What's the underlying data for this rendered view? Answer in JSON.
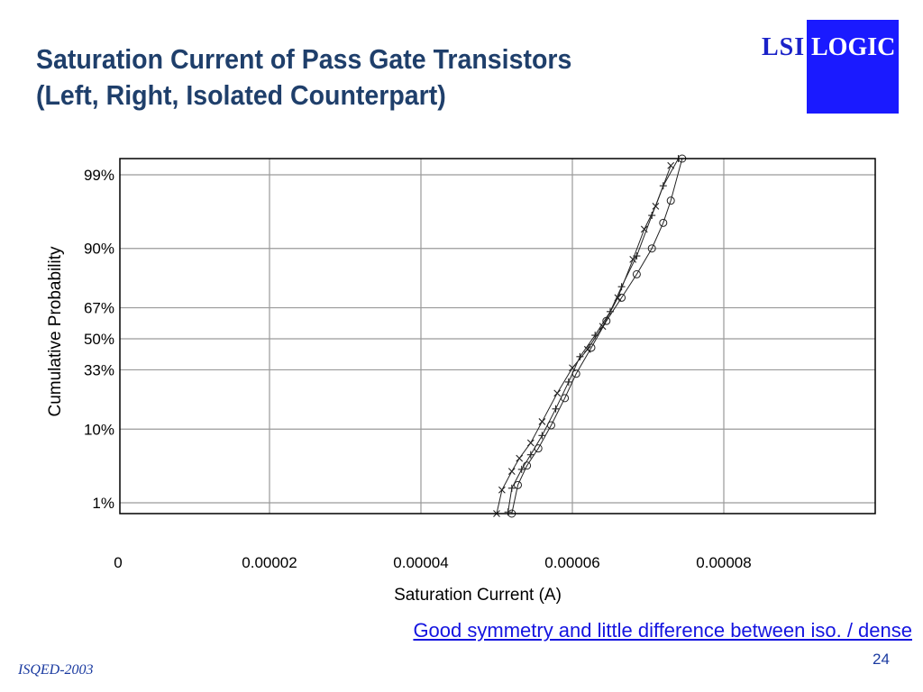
{
  "slide": {
    "title_line1": "Saturation Current of Pass Gate Transistors",
    "title_line2": "(Left, Right, Isolated Counterpart)",
    "caption": "Good symmetry and little difference between iso. / dense",
    "page_number": "24",
    "footer": "ISQED-2003",
    "logo_text_left": "LSI",
    "logo_text_box": "LOGIC",
    "colors": {
      "title": "#1f3f6b",
      "logo_blue": "#1a1aff",
      "caption": "#1414e0"
    }
  },
  "chart_data": {
    "type": "line",
    "title": "",
    "xlabel": "Saturation Current (A)",
    "ylabel": "Cumulative Probability",
    "xlim": [
      0,
      0.0001
    ],
    "x_ticks": [
      0,
      2e-05,
      4e-05,
      6e-05,
      8e-05
    ],
    "x_tick_labels": [
      "0",
      "0.00002",
      "0.00004",
      "0.00006",
      "0.00008"
    ],
    "y_scale": "normal-probability",
    "y_ticks": [
      1,
      10,
      33,
      50,
      67,
      90,
      99
    ],
    "y_tick_labels": [
      "1%",
      "10%",
      "33%",
      "50%",
      "67%",
      "90%",
      "99%"
    ],
    "grid": true,
    "series": [
      {
        "marker": "x",
        "points": [
          [
            5e-05,
            0.6
          ],
          [
            5.07e-05,
            1.6
          ],
          [
            5.2e-05,
            3.0
          ],
          [
            5.3e-05,
            4.5
          ],
          [
            5.45e-05,
            7.0
          ],
          [
            5.6e-05,
            12.0
          ],
          [
            5.8e-05,
            22.0
          ],
          [
            6e-05,
            34.0
          ],
          [
            6.2e-05,
            44.0
          ],
          [
            6.4e-05,
            57.0
          ],
          [
            6.6e-05,
            72.0
          ],
          [
            6.8e-05,
            87.0
          ],
          [
            6.95e-05,
            94.0
          ],
          [
            7.1e-05,
            97.0
          ],
          [
            7.3e-05,
            99.3
          ]
        ]
      },
      {
        "marker": "+",
        "points": [
          [
            5.15e-05,
            0.7
          ],
          [
            5.2e-05,
            1.7
          ],
          [
            5.33e-05,
            3.2
          ],
          [
            5.45e-05,
            5.0
          ],
          [
            5.6e-05,
            8.5
          ],
          [
            5.78e-05,
            16.0
          ],
          [
            5.95e-05,
            27.0
          ],
          [
            6.1e-05,
            40.0
          ],
          [
            6.3e-05,
            52.0
          ],
          [
            6.5e-05,
            65.0
          ],
          [
            6.65e-05,
            77.0
          ],
          [
            6.85e-05,
            88.0
          ],
          [
            7.05e-05,
            96.0
          ],
          [
            7.2e-05,
            98.5
          ],
          [
            7.4e-05,
            99.6
          ]
        ]
      },
      {
        "marker": "o",
        "points": [
          [
            5.2e-05,
            0.6
          ],
          [
            5.28e-05,
            1.9
          ],
          [
            5.4e-05,
            3.6
          ],
          [
            5.55e-05,
            6.0
          ],
          [
            5.72e-05,
            11.0
          ],
          [
            5.9e-05,
            20.0
          ],
          [
            6.05e-05,
            31.0
          ],
          [
            6.25e-05,
            45.0
          ],
          [
            6.45e-05,
            60.0
          ],
          [
            6.65e-05,
            72.0
          ],
          [
            6.85e-05,
            82.0
          ],
          [
            7.05e-05,
            90.0
          ],
          [
            7.2e-05,
            95.0
          ],
          [
            7.3e-05,
            97.5
          ],
          [
            7.45e-05,
            99.6
          ]
        ]
      }
    ]
  }
}
